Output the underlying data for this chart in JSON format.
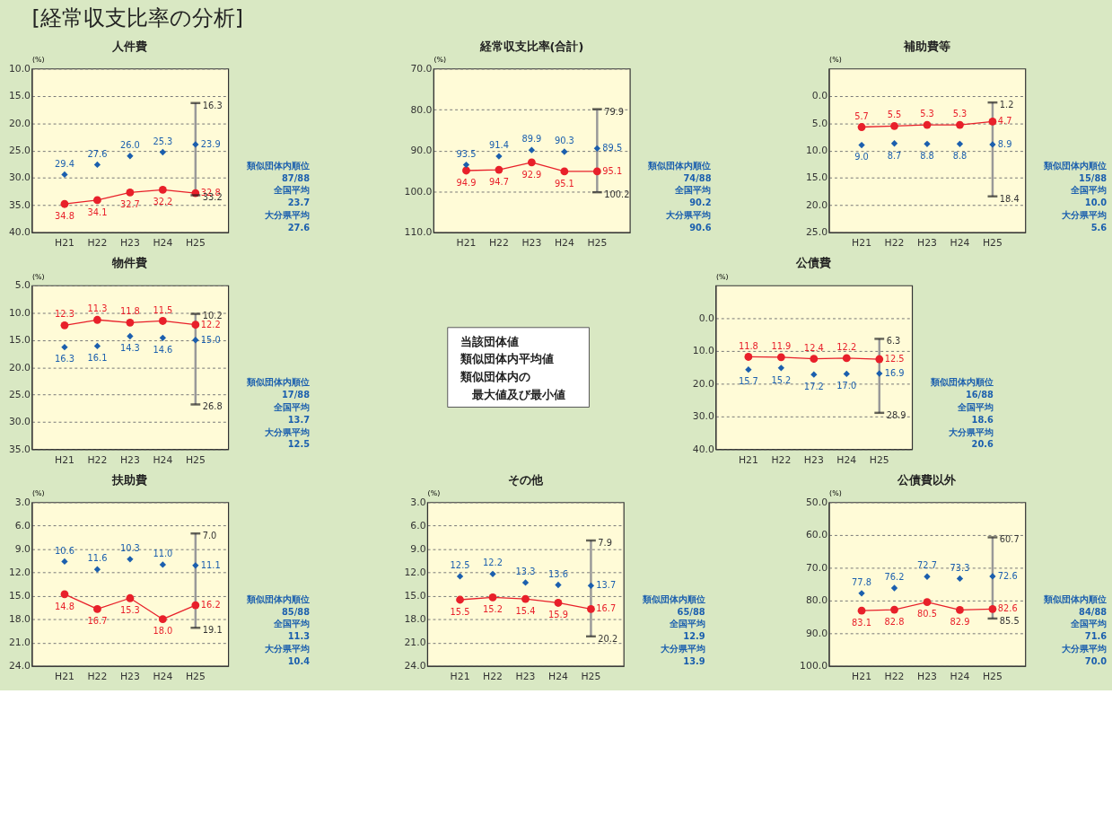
{
  "chart_data": [
    {
      "type": "line",
      "title": "人件費",
      "ylabel": "(%)",
      "categories": [
        "H21",
        "H22",
        "H23",
        "H24",
        "H25"
      ],
      "ylim": [
        40,
        10
      ],
      "yticks": [
        {
          "value": 10,
          "label": "10.0"
        },
        {
          "value": 15,
          "label": "15.0"
        },
        {
          "value": 20,
          "label": "20.0"
        },
        {
          "value": 25,
          "label": "25.0"
        },
        {
          "value": 30,
          "label": "30.0"
        },
        {
          "value": 35,
          "label": "35.0"
        },
        {
          "value": 40,
          "label": "40.0"
        }
      ],
      "grid": "y",
      "series": [
        {
          "type": "line",
          "marker": "circle",
          "color": "#e8202a",
          "values": [
            34.8,
            34.1,
            32.7,
            32.2,
            32.8
          ],
          "value_labels": [
            "34.8",
            "34.1",
            "32.7",
            "32.2",
            "32.8"
          ]
        },
        {
          "type": "scatter",
          "marker": "diamond",
          "color": "#1b5fae",
          "values": [
            29.4,
            27.6,
            26.0,
            25.3,
            23.9
          ],
          "value_labels": [
            "29.4",
            "27.6",
            "26.0",
            "25.3",
            "23.9"
          ],
          "errors": [
            null,
            null,
            null,
            null,
            [
              16.3,
              33.2
            ]
          ]
        }
      ],
      "annotations": [
        "類似団体内順位",
        "87/88",
        "全国平均",
        "23.7",
        "大分県平均",
        "27.6",
        {
          "text": "16.3",
          "x": "H25",
          "y": 16.3
        },
        {
          "text": "33.2",
          "x": "H25",
          "y": 33.2
        }
      ]
    },
    {
      "type": "line",
      "title": "経常収支比率(合計)",
      "ylabel": "(%)",
      "categories": [
        "H21",
        "H22",
        "H23",
        "H24",
        "H25"
      ],
      "ylim": [
        110,
        70
      ],
      "yticks": [
        {
          "value": 70,
          "label": "70.0"
        },
        {
          "value": 80,
          "label": "80.0"
        },
        {
          "value": 90,
          "label": "90.0"
        },
        {
          "value": 100,
          "label": "100.0"
        },
        {
          "value": 110,
          "label": "110.0"
        }
      ],
      "grid": "y",
      "series": [
        {
          "type": "line",
          "marker": "circle",
          "color": "#e8202a",
          "values": [
            94.9,
            94.7,
            92.9,
            95.1,
            95.1
          ],
          "value_labels": [
            "94.9",
            "94.7",
            "92.9",
            "95.1",
            "95.1"
          ]
        },
        {
          "type": "scatter",
          "marker": "diamond",
          "color": "#1b5fae",
          "values": [
            93.5,
            91.4,
            89.9,
            90.3,
            89.5
          ],
          "value_labels": [
            "93.5",
            "91.4",
            "89.9",
            "90.3",
            "89.5"
          ],
          "errors": [
            null,
            null,
            null,
            null,
            [
              79.9,
              100.2
            ]
          ]
        }
      ],
      "annotations": [
        "類似団体内順位",
        "74/88",
        "全国平均",
        "90.2",
        "大分県平均",
        "90.6",
        {
          "text": "79.9",
          "x": "H25",
          "y": 79.9
        },
        {
          "text": "100.2",
          "x": "H25",
          "y": 100.2
        }
      ]
    },
    {
      "type": "line",
      "title": "補助費等",
      "ylabel": "(%)",
      "categories": [
        "H21",
        "H22",
        "H23",
        "H24",
        "H25"
      ],
      "ylim": [
        25,
        -5
      ],
      "yticks": [
        {
          "value": 0,
          "label": "0.0"
        },
        {
          "value": 5,
          "label": "5.0"
        },
        {
          "value": 10,
          "label": "10.0"
        },
        {
          "value": 15,
          "label": "15.0"
        },
        {
          "value": 20,
          "label": "20.0"
        },
        {
          "value": 25,
          "label": "25.0"
        }
      ],
      "grid": "y",
      "series": [
        {
          "type": "line",
          "marker": "circle",
          "color": "#e8202a",
          "values": [
            5.7,
            5.5,
            5.3,
            5.3,
            4.7
          ],
          "value_labels": [
            "5.7",
            "5.5",
            "5.3",
            "5.3",
            "4.7"
          ]
        },
        {
          "type": "scatter",
          "marker": "diamond",
          "color": "#1b5fae",
          "values": [
            9.0,
            8.7,
            8.8,
            8.8,
            8.9
          ],
          "value_labels": [
            "9.0",
            "8.7",
            "8.8",
            "8.8",
            "8.9"
          ],
          "errors": [
            null,
            null,
            null,
            null,
            [
              1.2,
              18.4
            ]
          ]
        }
      ],
      "annotations": [
        "類似団体内順位",
        "15/88",
        "全国平均",
        "10.0",
        "大分県平均",
        "5.6",
        {
          "text": "1.2",
          "x": "H25",
          "y": 1.2
        },
        {
          "text": "18.4",
          "x": "H25",
          "y": 18.4
        }
      ]
    },
    {
      "type": "line",
      "title": "物件費",
      "ylabel": "(%)",
      "categories": [
        "H21",
        "H22",
        "H23",
        "H24",
        "H25"
      ],
      "ylim": [
        35,
        5
      ],
      "yticks": [
        {
          "value": 5,
          "label": "5.0"
        },
        {
          "value": 10,
          "label": "10.0"
        },
        {
          "value": 15,
          "label": "15.0"
        },
        {
          "value": 20,
          "label": "20.0"
        },
        {
          "value": 25,
          "label": "25.0"
        },
        {
          "value": 30,
          "label": "30.0"
        },
        {
          "value": 35,
          "label": "35.0"
        }
      ],
      "grid": "y",
      "series": [
        {
          "type": "line",
          "marker": "circle",
          "color": "#e8202a",
          "values": [
            12.3,
            11.3,
            11.8,
            11.5,
            12.2
          ],
          "value_labels": [
            "12.3",
            "11.3",
            "11.8",
            "11.5",
            "12.2"
          ]
        },
        {
          "type": "scatter",
          "marker": "diamond",
          "color": "#1b5fae",
          "values": [
            16.3,
            16.1,
            14.3,
            14.6,
            15.0
          ],
          "value_labels": [
            "16.3",
            "16.1",
            "14.3",
            "14.6",
            "15.0"
          ],
          "errors": [
            null,
            null,
            null,
            null,
            [
              10.2,
              26.8
            ]
          ]
        }
      ],
      "annotations": [
        "類似団体内順位",
        "17/88",
        "全国平均",
        "13.7",
        "大分県平均",
        "12.5",
        {
          "text": "10.2",
          "x": "H25",
          "y": 10.2
        },
        {
          "text": "26.8",
          "x": "H25",
          "y": 26.8
        }
      ]
    },
    {
      "type": "other",
      "title": "[経常収支比率の分析]",
      "annotations": [
        "当該団体値",
        "類似団体内平均値",
        "類似団体内の",
        "最大値及び最小値"
      ]
    },
    {
      "type": "line",
      "title": "公債費",
      "ylabel": "(%)",
      "categories": [
        "H21",
        "H22",
        "H23",
        "H24",
        "H25"
      ],
      "ylim": [
        40,
        -10
      ],
      "yticks": [
        {
          "value": 0,
          "label": "0.0"
        },
        {
          "value": 10,
          "label": "10.0"
        },
        {
          "value": 20,
          "label": "20.0"
        },
        {
          "value": 30,
          "label": "30.0"
        },
        {
          "value": 40,
          "label": "40.0"
        }
      ],
      "grid": "y",
      "series": [
        {
          "type": "line",
          "marker": "circle",
          "color": "#e8202a",
          "values": [
            11.8,
            11.9,
            12.4,
            12.2,
            12.5
          ],
          "value_labels": [
            "11.8",
            "11.9",
            "12.4",
            "12.2",
            "12.5"
          ]
        },
        {
          "type": "scatter",
          "marker": "diamond",
          "color": "#1b5fae",
          "values": [
            15.7,
            15.2,
            17.2,
            17.0,
            16.9
          ],
          "value_labels": [
            "15.7",
            "15.2",
            "17.2",
            "17.0",
            "16.9"
          ],
          "errors": [
            null,
            null,
            null,
            null,
            [
              6.3,
              28.9
            ]
          ]
        }
      ],
      "annotations": [
        "類似団体内順位",
        "16/88",
        "全国平均",
        "18.6",
        "大分県平均",
        "20.6",
        {
          "text": "6.3",
          "x": "H25",
          "y": 6.3
        },
        {
          "text": "28.9",
          "x": "H25",
          "y": 28.9
        }
      ]
    },
    {
      "type": "line",
      "title": "扶助費",
      "ylabel": "(%)",
      "categories": [
        "H21",
        "H22",
        "H23",
        "H24",
        "H25"
      ],
      "ylim": [
        24,
        3
      ],
      "yticks": [
        {
          "value": 3,
          "label": "3.0"
        },
        {
          "value": 6,
          "label": "6.0"
        },
        {
          "value": 9,
          "label": "9.0"
        },
        {
          "value": 12,
          "label": "12.0"
        },
        {
          "value": 15,
          "label": "15.0"
        },
        {
          "value": 18,
          "label": "18.0"
        },
        {
          "value": 21,
          "label": "21.0"
        },
        {
          "value": 24,
          "label": "24.0"
        }
      ],
      "grid": "y",
      "series": [
        {
          "type": "line",
          "marker": "circle",
          "color": "#e8202a",
          "values": [
            14.8,
            16.7,
            15.3,
            18.0,
            16.2
          ],
          "value_labels": [
            "14.8",
            "16.7",
            "15.3",
            "18.0",
            "16.2"
          ]
        },
        {
          "type": "scatter",
          "marker": "diamond",
          "color": "#1b5fae",
          "values": [
            10.6,
            11.6,
            10.3,
            11.0,
            11.1
          ],
          "value_labels": [
            "10.6",
            "11.6",
            "10.3",
            "11.0",
            "11.1"
          ],
          "errors": [
            null,
            null,
            null,
            null,
            [
              7.0,
              19.1
            ]
          ]
        }
      ],
      "annotations": [
        "類似団体内順位",
        "85/88",
        "全国平均",
        "11.3",
        "大分県平均",
        "10.4",
        {
          "text": "7.0",
          "x": "H25",
          "y": 7.0
        },
        {
          "text": "19.1",
          "x": "H25",
          "y": 19.1
        }
      ]
    },
    {
      "type": "line",
      "title": "その他",
      "ylabel": "(%)",
      "categories": [
        "H21",
        "H22",
        "H23",
        "H24",
        "H25"
      ],
      "ylim": [
        24,
        3
      ],
      "yticks": [
        {
          "value": 3,
          "label": "3.0"
        },
        {
          "value": 6,
          "label": "6.0"
        },
        {
          "value": 9,
          "label": "9.0"
        },
        {
          "value": 12,
          "label": "12.0"
        },
        {
          "value": 15,
          "label": "15.0"
        },
        {
          "value": 18,
          "label": "18.0"
        },
        {
          "value": 21,
          "label": "21.0"
        },
        {
          "value": 24,
          "label": "24.0"
        }
      ],
      "grid": "y",
      "series": [
        {
          "type": "line",
          "marker": "circle",
          "color": "#e8202a",
          "values": [
            15.5,
            15.2,
            15.4,
            15.9,
            16.7
          ],
          "value_labels": [
            "15.5",
            "15.2",
            "15.4",
            "15.9",
            "16.7"
          ]
        },
        {
          "type": "scatter",
          "marker": "diamond",
          "color": "#1b5fae",
          "values": [
            12.5,
            12.2,
            13.3,
            13.6,
            13.7
          ],
          "value_labels": [
            "12.5",
            "12.2",
            "13.3",
            "13.6",
            "13.7"
          ],
          "errors": [
            null,
            null,
            null,
            null,
            [
              7.9,
              20.2
            ]
          ]
        }
      ],
      "annotations": [
        "類似団体内順位",
        "65/88",
        "全国平均",
        "12.9",
        "大分県平均",
        "13.9",
        {
          "text": "7.9",
          "x": "H25",
          "y": 7.9
        },
        {
          "text": "20.2",
          "x": "H25",
          "y": 20.2
        }
      ]
    },
    {
      "type": "line",
      "title": "公債費以外",
      "ylabel": "(%)",
      "categories": [
        "H21",
        "H22",
        "H23",
        "H24",
        "H25"
      ],
      "ylim": [
        100,
        50
      ],
      "yticks": [
        {
          "value": 50,
          "label": "50.0"
        },
        {
          "value": 60,
          "label": "60.0"
        },
        {
          "value": 70,
          "label": "70.0"
        },
        {
          "value": 80,
          "label": "80.0"
        },
        {
          "value": 90,
          "label": "90.0"
        },
        {
          "value": 100,
          "label": "100.0"
        }
      ],
      "grid": "y",
      "series": [
        {
          "type": "line",
          "marker": "circle",
          "color": "#e8202a",
          "values": [
            83.1,
            82.8,
            80.5,
            82.9,
            82.6
          ],
          "value_labels": [
            "83.1",
            "82.8",
            "80.5",
            "82.9",
            "82.6"
          ]
        },
        {
          "type": "scatter",
          "marker": "diamond",
          "color": "#1b5fae",
          "values": [
            77.8,
            76.2,
            72.7,
            73.3,
            72.6
          ],
          "value_labels": [
            "77.8",
            "76.2",
            "72.7",
            "73.3",
            "72.6"
          ],
          "errors": [
            null,
            null,
            null,
            null,
            [
              60.7,
              85.5
            ]
          ]
        }
      ],
      "annotations": [
        "類似団体内順位",
        "84/88",
        "全国平均",
        "71.6",
        "大分県平均",
        "70.0",
        {
          "text": "60.7",
          "x": "H25",
          "y": 60.7
        },
        {
          "text": "85.5",
          "x": "H25",
          "y": 85.5
        }
      ]
    }
  ]
}
